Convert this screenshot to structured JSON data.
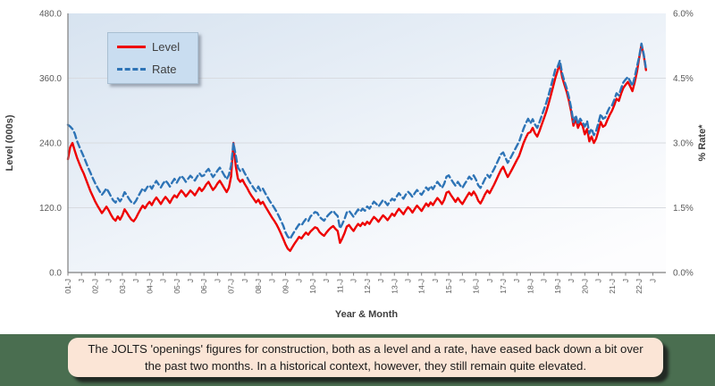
{
  "caption": {
    "text": "The JOLTS 'openings' figures for construction, both as a level and a rate, have eased back down a bit over the past two months. In a historical context, however, they still remain quite elevated."
  },
  "colors": {
    "level_line": "#ee0000",
    "rate_line": "#2e74b6",
    "footer_band": "#4a6e50",
    "caption_bg": "#fbe5d6",
    "legend_bg": "#c9ddf0",
    "gridline": "#d8dbe0",
    "axis_line": "#7f7f7f",
    "plot_gradient_start": "#d7e3f0",
    "plot_gradient_end": "#fdfdfe"
  },
  "legend": {
    "items": [
      {
        "label": "Level",
        "style": "solid",
        "color": "#ee0000"
      },
      {
        "label": "Rate",
        "style": "dashed",
        "color": "#2e74b6"
      }
    ]
  },
  "axes": {
    "y_left_title": "Level (000s)",
    "y_right_title": "% Rate*",
    "x_title": "Year & Month",
    "y_left_ticks": [
      "480.0",
      "360.0",
      "240.0",
      "120.0",
      "0.0"
    ],
    "y_right_ticks": [
      "6.0%",
      "4.5%",
      "3.0%",
      "1.5%",
      "0.0%"
    ],
    "x_tick_labels": [
      "01-J",
      "J",
      "02-J",
      "J",
      "03-J",
      "J",
      "04-J",
      "J",
      "05-J",
      "J",
      "06-J",
      "J",
      "07-J",
      "J",
      "08-J",
      "J",
      "09-J",
      "J",
      "10-J",
      "J",
      "11-J",
      "J",
      "12-J",
      "J",
      "13-J",
      "J",
      "14-J",
      "J",
      "15-J",
      "J",
      "16-J",
      "J",
      "17-J",
      "J",
      "18-J",
      "J",
      "19-J",
      "J",
      "20-J",
      "J",
      "21-J",
      "J",
      "22-J",
      "J"
    ]
  },
  "chart_data": {
    "type": "line",
    "title": "",
    "x_start": "2001-01",
    "x_end": "2022-04",
    "frequency": "monthly",
    "x_tick_interval_months": 6,
    "ylim_left": [
      0,
      480
    ],
    "ylim_right": [
      0,
      6
    ],
    "grid": "horizontal",
    "legend_position": "top-left-inside",
    "series": [
      {
        "name": "Level",
        "axis": "left",
        "unit": "thousands",
        "color": "#ee0000",
        "line": "solid",
        "values": [
          210,
          232,
          240,
          226,
          213,
          202,
          192,
          183,
          172,
          161,
          150,
          141,
          132,
          124,
          117,
          110,
          116,
          122,
          115,
          107,
          100,
          96,
          104,
          98,
          106,
          117,
          111,
          104,
          98,
          95,
          101,
          109,
          117,
          124,
          119,
          126,
          131,
          125,
          133,
          139,
          133,
          127,
          134,
          140,
          135,
          129,
          137,
          143,
          139,
          146,
          152,
          147,
          141,
          146,
          152,
          148,
          143,
          150,
          157,
          151,
          156,
          163,
          168,
          160,
          153,
          158,
          165,
          170,
          163,
          156,
          149,
          157,
          178,
          240,
          198,
          174,
          168,
          172,
          164,
          157,
          149,
          142,
          136,
          130,
          135,
          127,
          131,
          123,
          116,
          109,
          102,
          96,
          89,
          81,
          72,
          62,
          52,
          44,
          40,
          47,
          54,
          60,
          66,
          63,
          69,
          74,
          70,
          76,
          80,
          84,
          82,
          75,
          71,
          68,
          74,
          79,
          83,
          86,
          81,
          77,
          55,
          63,
          73,
          85,
          88,
          82,
          77,
          84,
          90,
          86,
          92,
          88,
          94,
          90,
          97,
          103,
          99,
          94,
          100,
          106,
          102,
          97,
          103,
          109,
          105,
          112,
          118,
          113,
          108,
          115,
          121,
          117,
          111,
          118,
          124,
          119,
          114,
          121,
          128,
          123,
          130,
          125,
          132,
          138,
          133,
          127,
          135,
          148,
          150,
          143,
          137,
          131,
          138,
          132,
          127,
          134,
          141,
          148,
          143,
          150,
          143,
          133,
          128,
          136,
          145,
          152,
          147,
          155,
          163,
          172,
          181,
          190,
          196,
          186,
          177,
          184,
          192,
          200,
          208,
          216,
          228,
          240,
          250,
          258,
          260,
          268,
          258,
          252,
          262,
          274,
          286,
          298,
          312,
          328,
          344,
          360,
          374,
          386,
          362,
          348,
          335,
          318,
          298,
          272,
          285,
          268,
          278,
          272,
          256,
          266,
          243,
          252,
          240,
          248,
          262,
          279,
          270,
          273,
          283,
          292,
          300,
          310,
          322,
          318,
          331,
          342,
          348,
          353,
          345,
          336,
          352,
          372,
          398,
          422,
          402,
          375
        ]
      },
      {
        "name": "Rate",
        "axis": "right",
        "unit": "%",
        "color": "#2e74b6",
        "line": "dashed",
        "values": [
          3.42,
          3.38,
          3.32,
          3.22,
          3.05,
          2.92,
          2.8,
          2.68,
          2.55,
          2.42,
          2.3,
          2.18,
          2.07,
          1.97,
          1.88,
          1.8,
          1.87,
          1.95,
          1.86,
          1.76,
          1.67,
          1.62,
          1.72,
          1.65,
          1.73,
          1.86,
          1.79,
          1.7,
          1.63,
          1.59,
          1.66,
          1.76,
          1.86,
          1.95,
          1.89,
          1.98,
          2.02,
          1.94,
          2.04,
          2.12,
          2.04,
          1.97,
          2.06,
          2.13,
          2.07,
          1.99,
          2.09,
          2.17,
          2.08,
          2.17,
          2.24,
          2.18,
          2.1,
          2.17,
          2.24,
          2.19,
          2.13,
          2.22,
          2.3,
          2.23,
          2.25,
          2.34,
          2.4,
          2.3,
          2.21,
          2.28,
          2.36,
          2.43,
          2.34,
          2.25,
          2.16,
          2.26,
          2.48,
          3.0,
          2.72,
          2.43,
          2.35,
          2.4,
          2.3,
          2.21,
          2.11,
          2.03,
          1.95,
          1.88,
          1.99,
          1.89,
          1.94,
          1.84,
          1.75,
          1.66,
          1.58,
          1.5,
          1.41,
          1.31,
          1.2,
          1.08,
          0.93,
          0.83,
          0.78,
          0.87,
          0.96,
          1.04,
          1.12,
          1.09,
          1.17,
          1.24,
          1.19,
          1.3,
          1.35,
          1.4,
          1.38,
          1.29,
          1.24,
          1.2,
          1.28,
          1.34,
          1.39,
          1.43,
          1.36,
          1.31,
          1.02,
          1.12,
          1.24,
          1.39,
          1.43,
          1.36,
          1.29,
          1.38,
          1.46,
          1.41,
          1.48,
          1.43,
          1.53,
          1.48,
          1.56,
          1.64,
          1.59,
          1.53,
          1.6,
          1.68,
          1.63,
          1.56,
          1.64,
          1.71,
          1.67,
          1.76,
          1.84,
          1.77,
          1.71,
          1.8,
          1.87,
          1.82,
          1.75,
          1.84,
          1.91,
          1.85,
          1.8,
          1.88,
          1.97,
          1.91,
          2.0,
          1.93,
          2.02,
          2.1,
          2.03,
          1.96,
          2.06,
          2.22,
          2.25,
          2.16,
          2.08,
          2.01,
          2.1,
          2.02,
          1.96,
          2.05,
          2.13,
          2.22,
          2.16,
          2.25,
          2.15,
          2.02,
          1.96,
          2.06,
          2.17,
          2.26,
          2.2,
          2.3,
          2.4,
          2.51,
          2.62,
          2.74,
          2.78,
          2.66,
          2.54,
          2.63,
          2.73,
          2.83,
          2.93,
          3.03,
          3.18,
          3.33,
          3.46,
          3.56,
          3.45,
          3.55,
          3.43,
          3.35,
          3.48,
          3.63,
          3.78,
          3.93,
          4.1,
          4.3,
          4.5,
          4.7,
          4.76,
          4.91,
          4.61,
          4.43,
          4.27,
          4.06,
          3.81,
          3.48,
          3.64,
          3.43,
          3.56,
          3.48,
          3.38,
          3.51,
          3.22,
          3.33,
          3.18,
          3.28,
          3.46,
          3.67,
          3.56,
          3.59,
          3.72,
          3.83,
          3.87,
          4.0,
          4.15,
          4.1,
          4.26,
          4.4,
          4.47,
          4.53,
          4.43,
          4.32,
          4.52,
          4.77,
          5.0,
          5.3,
          5.05,
          4.71
        ]
      }
    ]
  }
}
